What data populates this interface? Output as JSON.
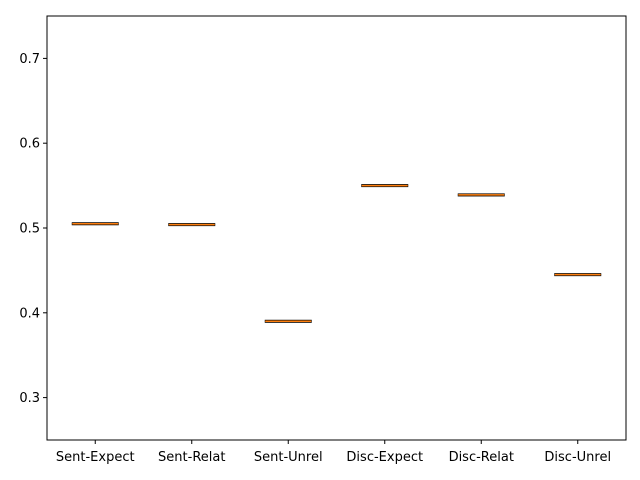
{
  "chart_data": {
    "type": "box",
    "categories": [
      "Sent-Expect",
      "Sent-Relat",
      "Sent-Unrel",
      "Disc-Expect",
      "Disc-Relat",
      "Disc-Unrel"
    ],
    "values": [
      0.505,
      0.504,
      0.39,
      0.55,
      0.539,
      0.445
    ],
    "yticks": [
      "0.3",
      "0.4",
      "0.5",
      "0.6",
      "0.7"
    ],
    "ytick_values": [
      0.3,
      0.4,
      0.5,
      0.6,
      0.7
    ],
    "ylim": [
      0.25,
      0.75
    ],
    "grid": false,
    "colors": {
      "median": "#ff7f0e",
      "box": "#000000",
      "axis": "#000000"
    }
  }
}
